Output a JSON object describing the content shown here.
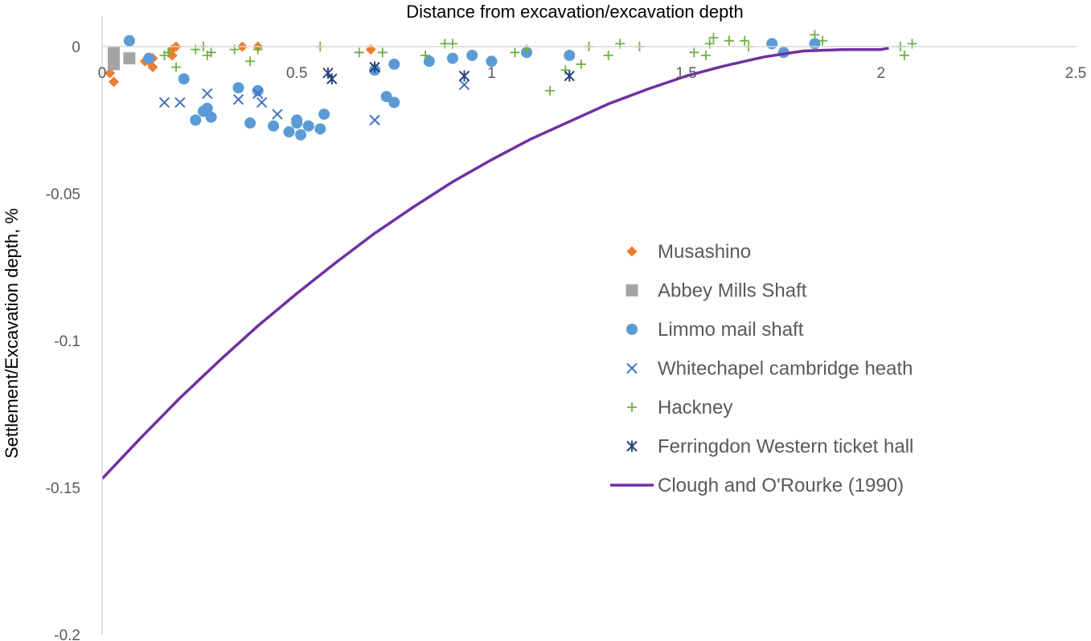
{
  "chart_data": {
    "type": "scatter",
    "title": "",
    "xlabel": "Distance from excavation/excavation depth",
    "ylabel": "Settlement/Excavation depth, %",
    "xlim": [
      0,
      2.5
    ],
    "ylim": [
      -0.2,
      0
    ],
    "x_ticks": [
      "0",
      "0.5",
      "1",
      "1.5",
      "2",
      "2.5"
    ],
    "y_ticks": [
      "0",
      "-0.05",
      "-0.1",
      "-0.15",
      "-0.2"
    ],
    "x_axis_position": "top",
    "grid": false,
    "legend_position": "right",
    "series": [
      {
        "name": "Musashino",
        "marker": "diamond",
        "color": "#ED7D31",
        "points": [
          [
            0.02,
            -0.009
          ],
          [
            0.03,
            -0.012
          ],
          [
            0.11,
            -0.005
          ],
          [
            0.12,
            -0.005
          ],
          [
            0.13,
            -0.007
          ],
          [
            0.13,
            -0.004
          ],
          [
            0.18,
            -0.003
          ],
          [
            0.18,
            -0.001
          ],
          [
            0.19,
            0.0
          ],
          [
            0.36,
            0.0
          ],
          [
            0.4,
            0.0
          ],
          [
            0.69,
            -0.001
          ]
        ]
      },
      {
        "name": "Abbey Mills Shaft",
        "marker": "square",
        "color": "#A5A5A5",
        "points": [
          [
            0.03,
            -0.002
          ],
          [
            0.03,
            -0.006
          ],
          [
            0.07,
            -0.004
          ]
        ]
      },
      {
        "name": "Limmo mail shaft",
        "marker": "circle",
        "color": "#5B9BD5",
        "points": [
          [
            0.07,
            0.002
          ],
          [
            0.12,
            -0.004
          ],
          [
            0.21,
            -0.011
          ],
          [
            0.24,
            -0.025
          ],
          [
            0.26,
            -0.022
          ],
          [
            0.27,
            -0.021
          ],
          [
            0.28,
            -0.024
          ],
          [
            0.35,
            -0.014
          ],
          [
            0.38,
            -0.026
          ],
          [
            0.4,
            -0.015
          ],
          [
            0.44,
            -0.027
          ],
          [
            0.48,
            -0.029
          ],
          [
            0.5,
            -0.025
          ],
          [
            0.5,
            -0.026
          ],
          [
            0.51,
            -0.03
          ],
          [
            0.53,
            -0.027
          ],
          [
            0.56,
            -0.028
          ],
          [
            0.57,
            -0.023
          ],
          [
            0.7,
            -0.008
          ],
          [
            0.73,
            -0.017
          ],
          [
            0.75,
            -0.006
          ],
          [
            0.75,
            -0.019
          ],
          [
            0.84,
            -0.005
          ],
          [
            0.9,
            -0.004
          ],
          [
            0.95,
            -0.003
          ],
          [
            1.0,
            -0.005
          ],
          [
            1.09,
            -0.002
          ],
          [
            1.2,
            -0.003
          ],
          [
            1.72,
            0.001
          ],
          [
            1.75,
            -0.002
          ],
          [
            1.83,
            0.001
          ]
        ]
      },
      {
        "name": "Whitechapel cambridge heath",
        "marker": "x",
        "color": "#4472C4",
        "points": [
          [
            0.16,
            -0.019
          ],
          [
            0.2,
            -0.019
          ],
          [
            0.27,
            -0.016
          ],
          [
            0.35,
            -0.018
          ],
          [
            0.4,
            -0.016
          ],
          [
            0.41,
            -0.019
          ],
          [
            0.45,
            -0.023
          ],
          [
            0.7,
            -0.025
          ],
          [
            0.93,
            -0.013
          ]
        ]
      },
      {
        "name": "Hackney",
        "marker": "plus",
        "color": "#70AD47",
        "points": [
          [
            0.16,
            -0.003
          ],
          [
            0.17,
            -0.002
          ],
          [
            0.19,
            -0.007
          ],
          [
            0.24,
            -0.001
          ],
          [
            0.26,
            0.0
          ],
          [
            0.27,
            -0.003
          ],
          [
            0.28,
            -0.002
          ],
          [
            0.34,
            -0.001
          ],
          [
            0.38,
            -0.005
          ],
          [
            0.4,
            -0.001
          ],
          [
            0.56,
            0.0
          ],
          [
            0.66,
            -0.002
          ],
          [
            0.72,
            -0.002
          ],
          [
            0.83,
            -0.003
          ],
          [
            0.88,
            0.001
          ],
          [
            0.9,
            0.001
          ],
          [
            1.06,
            -0.002
          ],
          [
            1.09,
            -0.001
          ],
          [
            1.15,
            -0.015
          ],
          [
            1.19,
            -0.008
          ],
          [
            1.23,
            -0.006
          ],
          [
            1.25,
            0.0
          ],
          [
            1.3,
            -0.003
          ],
          [
            1.33,
            0.001
          ],
          [
            1.38,
            0.0
          ],
          [
            1.52,
            -0.002
          ],
          [
            1.55,
            -0.003
          ],
          [
            1.56,
            0.001
          ],
          [
            1.57,
            0.003
          ],
          [
            1.61,
            0.002
          ],
          [
            1.65,
            0.002
          ],
          [
            1.66,
            0.0
          ],
          [
            1.83,
            0.004
          ],
          [
            1.85,
            0.002
          ],
          [
            2.05,
            0.0
          ],
          [
            2.06,
            -0.003
          ],
          [
            2.08,
            0.001
          ]
        ]
      },
      {
        "name": "Ferringdon Western ticket hall",
        "marker": "asterisk",
        "color": "#264478",
        "points": [
          [
            0.58,
            -0.009
          ],
          [
            0.59,
            -0.011
          ],
          [
            0.7,
            -0.007
          ],
          [
            0.93,
            -0.01
          ],
          [
            1.2,
            -0.01
          ]
        ]
      },
      {
        "name": "Clough and O'Rourke (1990)",
        "marker": "line",
        "color": "#7030A0",
        "points": [
          [
            0.0,
            -0.147
          ],
          [
            0.1,
            -0.133
          ],
          [
            0.2,
            -0.1195
          ],
          [
            0.3,
            -0.107
          ],
          [
            0.4,
            -0.095
          ],
          [
            0.5,
            -0.084
          ],
          [
            0.6,
            -0.0735
          ],
          [
            0.7,
            -0.0635
          ],
          [
            0.8,
            -0.0545
          ],
          [
            0.9,
            -0.046
          ],
          [
            1.0,
            -0.0385
          ],
          [
            1.1,
            -0.0315
          ],
          [
            1.2,
            -0.0255
          ],
          [
            1.3,
            -0.0195
          ],
          [
            1.4,
            -0.0145
          ],
          [
            1.5,
            -0.01
          ],
          [
            1.6,
            -0.0065
          ],
          [
            1.7,
            -0.0035
          ],
          [
            1.8,
            -0.0015
          ],
          [
            1.9,
            -0.001
          ],
          [
            2.0,
            -0.001
          ],
          [
            2.02,
            -0.0005
          ]
        ]
      }
    ]
  }
}
